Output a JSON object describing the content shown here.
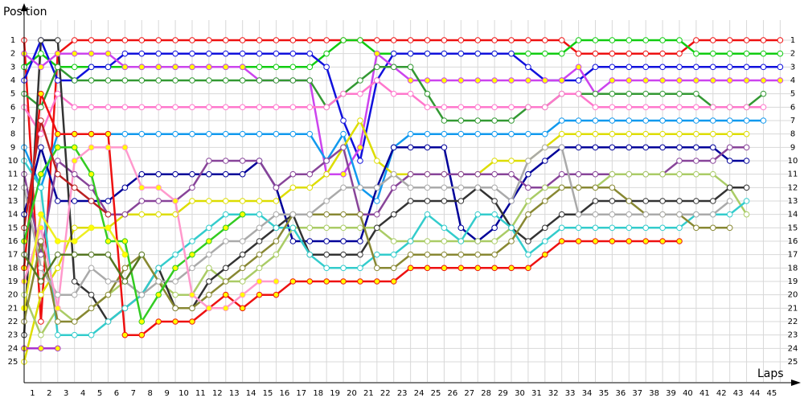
{
  "chart_data": {
    "type": "line",
    "y_label": "Position",
    "x_label": "Laps",
    "x": [
      0,
      1,
      2,
      3,
      4,
      5,
      6,
      7,
      8,
      9,
      10,
      11,
      12,
      13,
      14,
      15,
      16,
      17,
      18,
      19,
      20,
      21,
      22,
      23,
      24,
      25,
      26,
      27,
      28,
      29,
      30,
      31,
      32,
      33,
      34,
      35,
      36,
      37,
      38,
      39,
      40,
      41,
      42,
      43,
      44,
      45
    ],
    "xlim": [
      0,
      45.7
    ],
    "xticks": [
      1,
      2,
      3,
      4,
      5,
      6,
      7,
      8,
      9,
      10,
      11,
      12,
      13,
      14,
      15,
      16,
      17,
      18,
      19,
      20,
      21,
      22,
      23,
      24,
      25,
      26,
      27,
      28,
      29,
      30,
      31,
      32,
      33,
      34,
      35,
      36,
      37,
      38,
      39,
      40,
      41,
      42,
      43,
      44,
      45
    ],
    "ylim": [
      -0.5,
      26.5
    ],
    "y_inverted": true,
    "yticks": [
      1,
      2,
      3,
      4,
      5,
      6,
      7,
      8,
      9,
      10,
      11,
      12,
      13,
      14,
      15,
      16,
      17,
      18,
      19,
      20,
      21,
      22,
      23,
      24,
      25
    ],
    "grid": true,
    "series": [
      {
        "color": "#ee1111",
        "marker": "#ffffff",
        "values": [
          1,
          22,
          2,
          1,
          1,
          1,
          1,
          1,
          1,
          1,
          1,
          1,
          1,
          1,
          1,
          1,
          1,
          1,
          1,
          1,
          1,
          1,
          1,
          1,
          1,
          1,
          1,
          1,
          1,
          1,
          1,
          1,
          1,
          2,
          2,
          2,
          2,
          2,
          2,
          2,
          1,
          1,
          1,
          1,
          1,
          1
        ]
      },
      {
        "color": "#11cc11",
        "marker": "#ffffff",
        "values": [
          3,
          2,
          3,
          3,
          3,
          3,
          3,
          3,
          3,
          3,
          3,
          3,
          3,
          3,
          3,
          3,
          3,
          3,
          2,
          1,
          1,
          2,
          2,
          2,
          2,
          2,
          2,
          2,
          2,
          2,
          2,
          2,
          2,
          1,
          1,
          1,
          1,
          1,
          1,
          1,
          2,
          2,
          2,
          2,
          2,
          2
        ]
      },
      {
        "color": "#1111dd",
        "marker": "#ffffff",
        "values": [
          4,
          1,
          4,
          4,
          3,
          3,
          2,
          2,
          2,
          2,
          2,
          2,
          2,
          2,
          2,
          2,
          2,
          2,
          3,
          7,
          10,
          4,
          2,
          2,
          2,
          2,
          2,
          2,
          2,
          2,
          3,
          4,
          4,
          4,
          3,
          3,
          3,
          3,
          3,
          3,
          3,
          3,
          3,
          3,
          3,
          3
        ]
      },
      {
        "color": "#cc44ee",
        "marker": "#ffff00",
        "values": [
          2,
          3,
          2,
          2,
          2,
          2,
          3,
          3,
          3,
          3,
          3,
          3,
          3,
          3,
          4,
          4,
          4,
          4,
          11,
          11,
          9,
          2,
          3,
          4,
          4,
          4,
          4,
          4,
          4,
          4,
          4,
          4,
          4,
          3,
          5,
          4,
          4,
          4,
          4,
          4,
          4,
          4,
          4,
          4,
          4,
          4
        ]
      },
      {
        "color": "#339933",
        "marker": "#ffffff",
        "values": [
          5,
          6,
          3,
          4,
          4,
          4,
          4,
          4,
          4,
          4,
          4,
          4,
          4,
          4,
          4,
          4,
          4,
          4,
          6,
          5,
          4,
          3,
          3,
          3,
          5,
          7,
          7,
          7,
          7,
          7,
          6,
          6,
          5,
          5,
          5,
          5,
          5,
          5,
          5,
          5,
          5,
          6,
          6,
          6,
          5,
          null
        ]
      },
      {
        "color": "#ff77cc",
        "marker": "#ffffff",
        "values": [
          6,
          8,
          5,
          6,
          6,
          6,
          6,
          6,
          6,
          6,
          6,
          6,
          6,
          6,
          6,
          6,
          6,
          6,
          6,
          5,
          5,
          4,
          5,
          5,
          6,
          6,
          6,
          6,
          6,
          6,
          6,
          6,
          5,
          5,
          6,
          6,
          6,
          6,
          6,
          6,
          6,
          6,
          6,
          6,
          6,
          null
        ]
      },
      {
        "color": "#1199ee",
        "marker": "#ffffff",
        "values": [
          9,
          12,
          8,
          8,
          8,
          8,
          8,
          8,
          8,
          8,
          8,
          8,
          8,
          8,
          8,
          8,
          8,
          8,
          10,
          8,
          12,
          13,
          9,
          8,
          8,
          8,
          8,
          8,
          8,
          8,
          8,
          8,
          7,
          7,
          7,
          7,
          7,
          7,
          7,
          7,
          7,
          7,
          7,
          7,
          7,
          null
        ]
      },
      {
        "color": "#dddd00",
        "marker": "#ffffff",
        "values": [
          25,
          20,
          18,
          15,
          15,
          15,
          14,
          14,
          14,
          14,
          13,
          13,
          13,
          13,
          13,
          13,
          12,
          12,
          11,
          9,
          7,
          10,
          11,
          11,
          11,
          11,
          11,
          11,
          10,
          10,
          10,
          9,
          8,
          8,
          8,
          8,
          8,
          8,
          8,
          8,
          8,
          8,
          8,
          8,
          null,
          null
        ]
      },
      {
        "color": "#000099",
        "marker": "#ffffff",
        "values": [
          14,
          9,
          13,
          13,
          13,
          13,
          12,
          11,
          11,
          11,
          11,
          11,
          11,
          11,
          10,
          12,
          16,
          16,
          16,
          16,
          16,
          12,
          9,
          9,
          9,
          9,
          15,
          16,
          15,
          13,
          11,
          10,
          9,
          9,
          9,
          9,
          9,
          9,
          9,
          9,
          9,
          9,
          10,
          10,
          null,
          null
        ]
      },
      {
        "color": "#884499",
        "marker": "#ffffff",
        "values": [
          11,
          17,
          10,
          11,
          12,
          14,
          14,
          13,
          13,
          13,
          12,
          10,
          10,
          10,
          10,
          12,
          11,
          11,
          10,
          9,
          14,
          14,
          12,
          11,
          11,
          11,
          11,
          11,
          11,
          11,
          12,
          12,
          11,
          11,
          11,
          11,
          11,
          11,
          11,
          10,
          10,
          10,
          9,
          9,
          null,
          null
        ]
      },
      {
        "color": "#aacc66",
        "marker": "#ffffff",
        "values": [
          20,
          23,
          21,
          22,
          21,
          20,
          19,
          17,
          19,
          20,
          20,
          18,
          19,
          19,
          18,
          17,
          15,
          15,
          15,
          15,
          15,
          15,
          16,
          16,
          16,
          16,
          16,
          16,
          16,
          15,
          13,
          12,
          12,
          12,
          12,
          11,
          11,
          11,
          11,
          11,
          11,
          11,
          12,
          14,
          null,
          null
        ]
      },
      {
        "color": "#333333",
        "marker": "#ffffff",
        "values": [
          23,
          1,
          1,
          19,
          20,
          22,
          21,
          20,
          18,
          21,
          21,
          19,
          18,
          17,
          16,
          15,
          14,
          17,
          17,
          17,
          17,
          15,
          14,
          13,
          13,
          13,
          13,
          12,
          13,
          15,
          16,
          15,
          14,
          14,
          13,
          13,
          13,
          13,
          13,
          13,
          13,
          13,
          12,
          12,
          null,
          null
        ]
      },
      {
        "color": "#33cccc",
        "marker": "#ffffff",
        "values": [
          10,
          12,
          23,
          23,
          23,
          22,
          21,
          20,
          18,
          17,
          16,
          15,
          14,
          14,
          14,
          15,
          15,
          17,
          18,
          18,
          18,
          17,
          17,
          16,
          14,
          15,
          16,
          14,
          14,
          15,
          17,
          16,
          15,
          15,
          15,
          15,
          15,
          15,
          15,
          15,
          14,
          14,
          14,
          13,
          null,
          null
        ]
      },
      {
        "color": "#888833",
        "marker": "#ffffff",
        "values": [
          22,
          16,
          22,
          22,
          21,
          20,
          18,
          17,
          19,
          21,
          21,
          20,
          19,
          18,
          17,
          16,
          14,
          14,
          14,
          14,
          14,
          18,
          18,
          17,
          17,
          17,
          17,
          17,
          17,
          16,
          14,
          13,
          12,
          12,
          12,
          12,
          13,
          14,
          14,
          14,
          15,
          15,
          15,
          null,
          null,
          null
        ]
      },
      {
        "color": "#aaaaaa",
        "marker": "#ffffff",
        "values": [
          12,
          18,
          20,
          20,
          18,
          19,
          19,
          20,
          19,
          19,
          18,
          17,
          16,
          16,
          15,
          14,
          14,
          14,
          13,
          12,
          12,
          12,
          11,
          12,
          12,
          12,
          12,
          12,
          12,
          13,
          10,
          9,
          9,
          14,
          14,
          14,
          14,
          14,
          14,
          14,
          14,
          14,
          13,
          null,
          null,
          null
        ]
      },
      {
        "color": "#ee1111",
        "marker": "#ffff00",
        "values": [
          18,
          5,
          8,
          8,
          8,
          8,
          23,
          23,
          22,
          22,
          22,
          21,
          20,
          21,
          20,
          20,
          19,
          19,
          19,
          19,
          19,
          19,
          19,
          18,
          18,
          18,
          18,
          18,
          18,
          18,
          18,
          17,
          16,
          16,
          16,
          16,
          16,
          16,
          16,
          16,
          null,
          null,
          null,
          null,
          null,
          null
        ]
      },
      {
        "color": "#33cc22",
        "marker": "#ffff00",
        "values": [
          16,
          11,
          9,
          9,
          11,
          16,
          16,
          22,
          20,
          18,
          17,
          16,
          15,
          14,
          null,
          null,
          null,
          null,
          null,
          null,
          null,
          null,
          null,
          null,
          null,
          null,
          null,
          null,
          null,
          null,
          null,
          null,
          null,
          null,
          null,
          null,
          null,
          null,
          null,
          null,
          null,
          null,
          null,
          null,
          null,
          null
        ]
      },
      {
        "color": "#ff99cc",
        "marker": "#ffff00",
        "values": [
          19,
          15,
          21,
          10,
          9,
          9,
          9,
          12,
          12,
          13,
          20,
          21,
          21,
          20,
          19,
          19,
          null,
          null,
          null,
          null,
          null,
          null,
          null,
          null,
          null,
          null,
          null,
          null,
          null,
          null,
          null,
          null,
          null,
          null,
          null,
          null,
          null,
          null,
          null,
          null,
          null,
          null,
          null,
          null,
          null,
          null
        ]
      },
      {
        "color": "#eeee22",
        "marker": "#ffff00",
        "values": [
          21,
          14,
          16,
          16,
          15,
          15,
          17,
          null,
          null,
          null,
          null,
          null,
          null,
          null,
          null,
          null,
          null,
          null,
          null,
          null,
          null,
          null,
          null,
          null,
          null,
          null,
          null,
          null,
          null,
          null,
          null,
          null,
          null,
          null,
          null,
          null,
          null,
          null,
          null,
          null,
          null,
          null,
          null,
          null,
          null,
          null
        ]
      },
      {
        "color": "#557722",
        "marker": "#ffffff",
        "values": [
          17,
          19,
          17,
          17,
          17,
          17,
          19,
          17,
          null,
          null,
          null,
          null,
          null,
          null,
          null,
          null,
          null,
          null,
          null,
          null,
          null,
          null,
          null,
          null,
          null,
          null,
          null,
          null,
          null,
          null,
          null,
          null,
          null,
          null,
          null,
          null,
          null,
          null,
          null,
          null,
          null,
          null,
          null,
          null,
          null,
          null
        ]
      },
      {
        "color": "#aa33cc",
        "marker": "#ffff00",
        "values": [
          24,
          24,
          24,
          null,
          null,
          null,
          null,
          null,
          null,
          null,
          null,
          null,
          null,
          null,
          null,
          null,
          null,
          null,
          null,
          null,
          null,
          null,
          null,
          null,
          null,
          null,
          null,
          null,
          null,
          null,
          null,
          null,
          null,
          null,
          null,
          null,
          null,
          null,
          null,
          null,
          null,
          null,
          null,
          null,
          null,
          null
        ]
      },
      {
        "color": "#bb2222",
        "marker": "#ffffff",
        "values": [
          15,
          7,
          11,
          12,
          13,
          14,
          null,
          null,
          null,
          null,
          null,
          null,
          null,
          null,
          null,
          null,
          null,
          null,
          null,
          null,
          null,
          null,
          null,
          null,
          null,
          null,
          null,
          null,
          null,
          null,
          null,
          null,
          null,
          null,
          null,
          null,
          null,
          null,
          null,
          null,
          null,
          null,
          null,
          null,
          null,
          null
        ]
      }
    ]
  }
}
